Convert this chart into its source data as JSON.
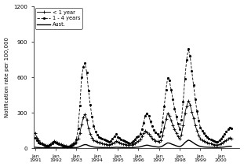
{
  "title": "",
  "ylabel": "Notification rate per 100,000",
  "ylim": [
    0,
    1200
  ],
  "yticks": [
    0,
    300,
    600,
    900,
    1200
  ],
  "xlabel": "",
  "start_year": 1991,
  "start_month": 1,
  "end_year": 2000,
  "end_month": 7,
  "legend_labels": [
    "< 1 year",
    "1 - 4 years",
    "Aust."
  ],
  "background_color": "#ffffff",
  "u1_data": [
    130,
    90,
    65,
    50,
    40,
    30,
    25,
    20,
    25,
    35,
    50,
    60,
    55,
    45,
    38,
    32,
    28,
    22,
    18,
    15,
    20,
    28,
    38,
    45,
    50,
    80,
    130,
    200,
    260,
    290,
    240,
    170,
    120,
    90,
    70,
    58,
    52,
    48,
    44,
    40,
    36,
    34,
    30,
    28,
    33,
    38,
    48,
    58,
    52,
    46,
    40,
    36,
    33,
    28,
    26,
    24,
    28,
    34,
    42,
    52,
    58,
    72,
    98,
    125,
    145,
    135,
    118,
    98,
    82,
    72,
    63,
    58,
    55,
    68,
    108,
    175,
    245,
    295,
    275,
    235,
    195,
    158,
    128,
    98,
    78,
    115,
    195,
    295,
    355,
    400,
    370,
    310,
    255,
    195,
    148,
    108,
    82,
    68,
    58,
    52,
    48,
    43,
    38,
    33,
    30,
    28,
    26,
    32,
    38,
    48,
    58,
    68,
    78,
    88,
    82,
    72
  ],
  "u4_data": [
    90,
    65,
    50,
    40,
    32,
    25,
    20,
    15,
    20,
    28,
    40,
    52,
    45,
    38,
    32,
    26,
    22,
    18,
    15,
    12,
    16,
    22,
    30,
    40,
    75,
    170,
    360,
    600,
    690,
    720,
    640,
    490,
    370,
    270,
    190,
    142,
    115,
    96,
    86,
    78,
    72,
    66,
    58,
    54,
    62,
    78,
    98,
    118,
    96,
    84,
    72,
    65,
    58,
    52,
    48,
    43,
    50,
    60,
    76,
    93,
    98,
    118,
    158,
    215,
    275,
    295,
    272,
    225,
    185,
    156,
    136,
    118,
    98,
    138,
    218,
    355,
    495,
    595,
    572,
    495,
    415,
    335,
    266,
    205,
    158,
    238,
    395,
    590,
    750,
    840,
    780,
    655,
    535,
    415,
    315,
    235,
    175,
    148,
    128,
    108,
    92,
    82,
    72,
    65,
    58,
    55,
    52,
    64,
    78,
    98,
    118,
    138,
    158,
    175,
    165,
    145
  ],
  "aust_data": [
    7,
    5.5,
    4.5,
    3.8,
    3.2,
    2.8,
    2.3,
    2,
    2.3,
    2.8,
    3.8,
    4.8,
    4.2,
    3.8,
    3.2,
    2.8,
    2.5,
    2.2,
    1.8,
    1.6,
    1.9,
    2.4,
    3,
    3.8,
    4.5,
    7.5,
    13,
    20,
    26,
    30,
    28,
    22,
    17,
    13,
    9.5,
    7.5,
    6.5,
    5.8,
    5.2,
    4.8,
    4.3,
    4,
    3.6,
    3.3,
    3.8,
    4.7,
    5.8,
    7.2,
    6.5,
    5.8,
    5.2,
    4.8,
    4.3,
    3.8,
    3.5,
    3.3,
    3.8,
    4.7,
    5.8,
    7.5,
    8.5,
    10.5,
    14,
    19,
    23,
    25,
    23,
    19,
    16,
    13.5,
    11.5,
    9.5,
    8.5,
    11.5,
    17,
    27,
    36,
    44,
    42,
    36,
    30,
    25,
    19,
    15,
    12,
    19,
    30,
    46,
    58,
    67,
    63,
    54,
    44,
    34,
    26,
    19,
    14,
    11.5,
    9.5,
    8.5,
    7.8,
    7.2,
    6.7,
    6.2,
    5.8,
    5.4,
    4.9,
    5.8,
    6.5,
    7.8,
    9.5,
    11.5,
    13.5,
    15.5,
    14.5,
    12.5
  ]
}
